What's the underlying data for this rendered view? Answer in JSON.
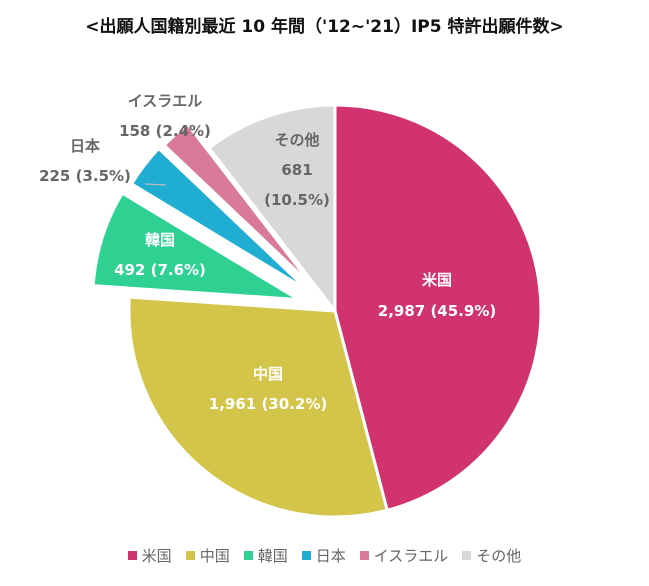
{
  "chart_data": {
    "type": "pie",
    "title": "<出願人国籍別最近 10 年間（'12~'21）IP5 特許出願件数>",
    "slices": [
      {
        "name": "米国",
        "value": 2987,
        "value_text": "2,987",
        "pct_text": "(45.9%)",
        "color": "#d1336f",
        "exploded": false
      },
      {
        "name": "中国",
        "value": 1961,
        "value_text": "1,961",
        "pct_text": "(30.2%)",
        "color": "#d2c54a",
        "exploded": false
      },
      {
        "name": "韓国",
        "value": 492,
        "value_text": "492",
        "pct_text": "(7.6%)",
        "color": "#2ed192",
        "exploded": true
      },
      {
        "name": "日本",
        "value": 225,
        "value_text": "225",
        "pct_text": "(3.5%)",
        "color": "#1fadd2",
        "exploded": true
      },
      {
        "name": "イスラエル",
        "value": 158,
        "value_text": "158",
        "pct_text": "(2.4%)",
        "color": "#d9799c",
        "exploded": true
      },
      {
        "name": "その他",
        "value": 681,
        "value_text": "681",
        "pct_text": "(10.5%)",
        "color": "#d8d8d8",
        "exploded": false
      }
    ],
    "legend_position": "bottom"
  }
}
